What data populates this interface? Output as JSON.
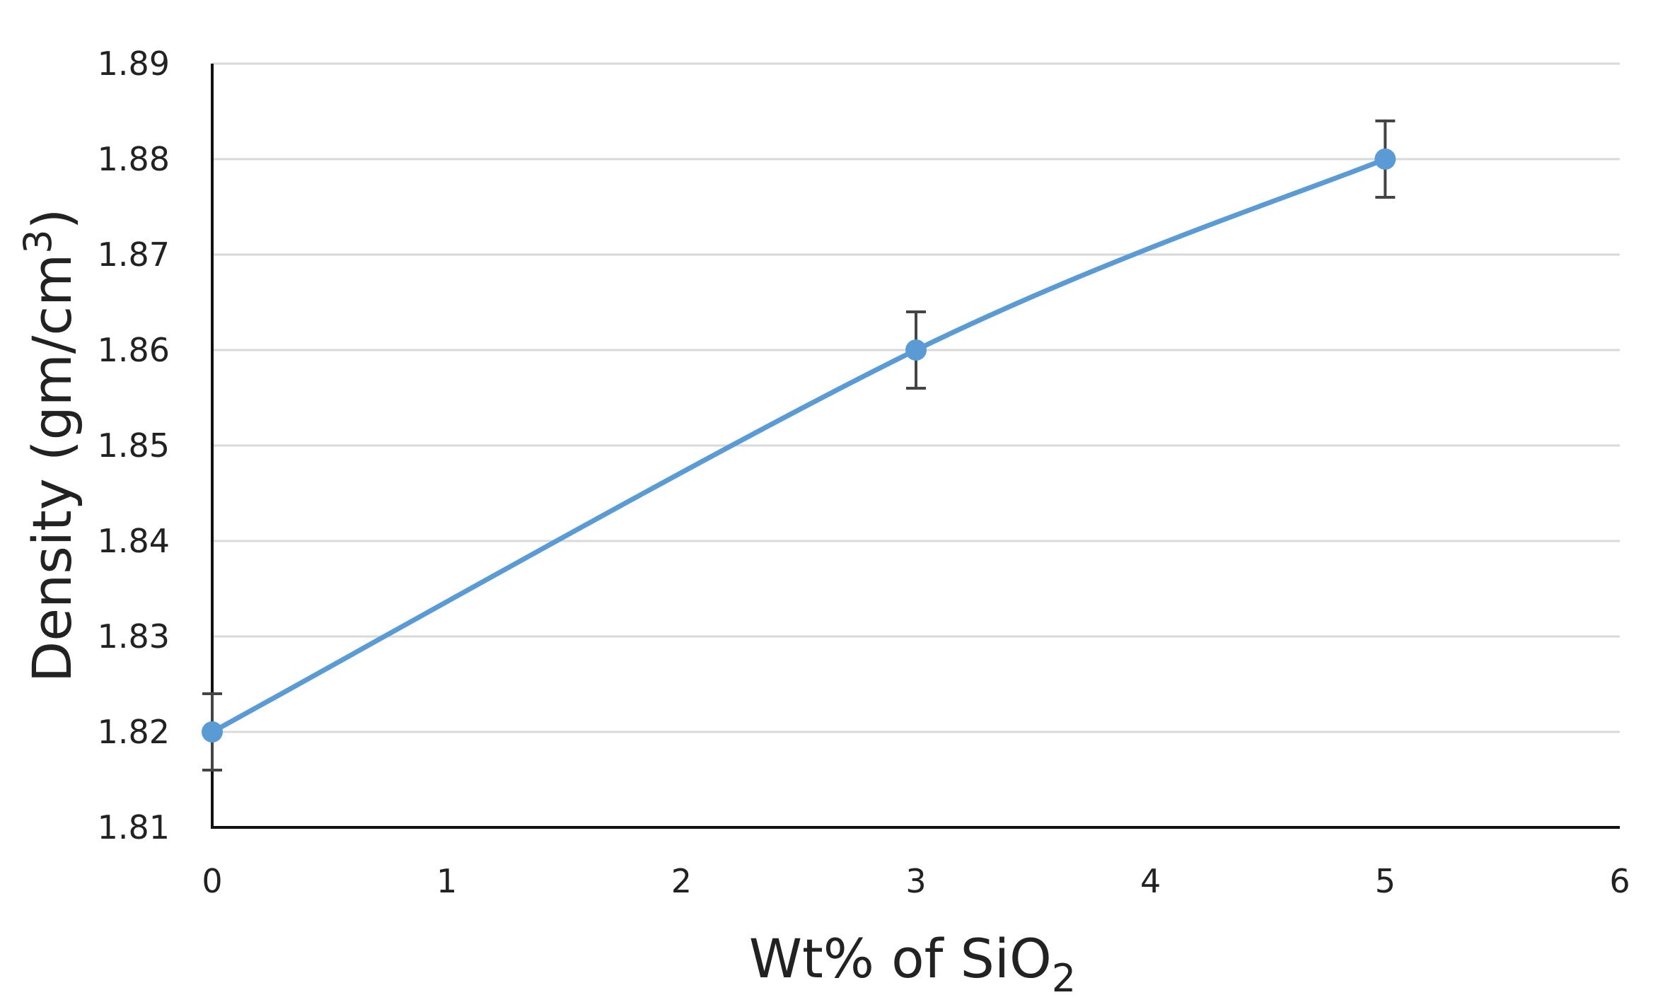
{
  "chart_data": {
    "type": "line",
    "title": "",
    "xlabel": "Wt% of SiO",
    "xlabel_sub": "2",
    "ylabel": "Density (gm/cm",
    "ylabel_sup": "3",
    "ylabel_end": ")",
    "xlim": [
      0,
      6
    ],
    "ylim": [
      1.81,
      1.89
    ],
    "x_ticks": [
      "0",
      "1",
      "2",
      "3",
      "4",
      "5",
      "6"
    ],
    "y_ticks": [
      "1.81",
      "1.82",
      "1.83",
      "1.84",
      "1.85",
      "1.86",
      "1.87",
      "1.88",
      "1.89"
    ],
    "grid": "horizontal",
    "legend": "none",
    "series": [
      {
        "name": "Density",
        "color": "#5b9bd5",
        "x": [
          0,
          3,
          5
        ],
        "y": [
          1.82,
          1.86,
          1.88
        ],
        "error": [
          0.004,
          0.004,
          0.004
        ]
      }
    ]
  }
}
